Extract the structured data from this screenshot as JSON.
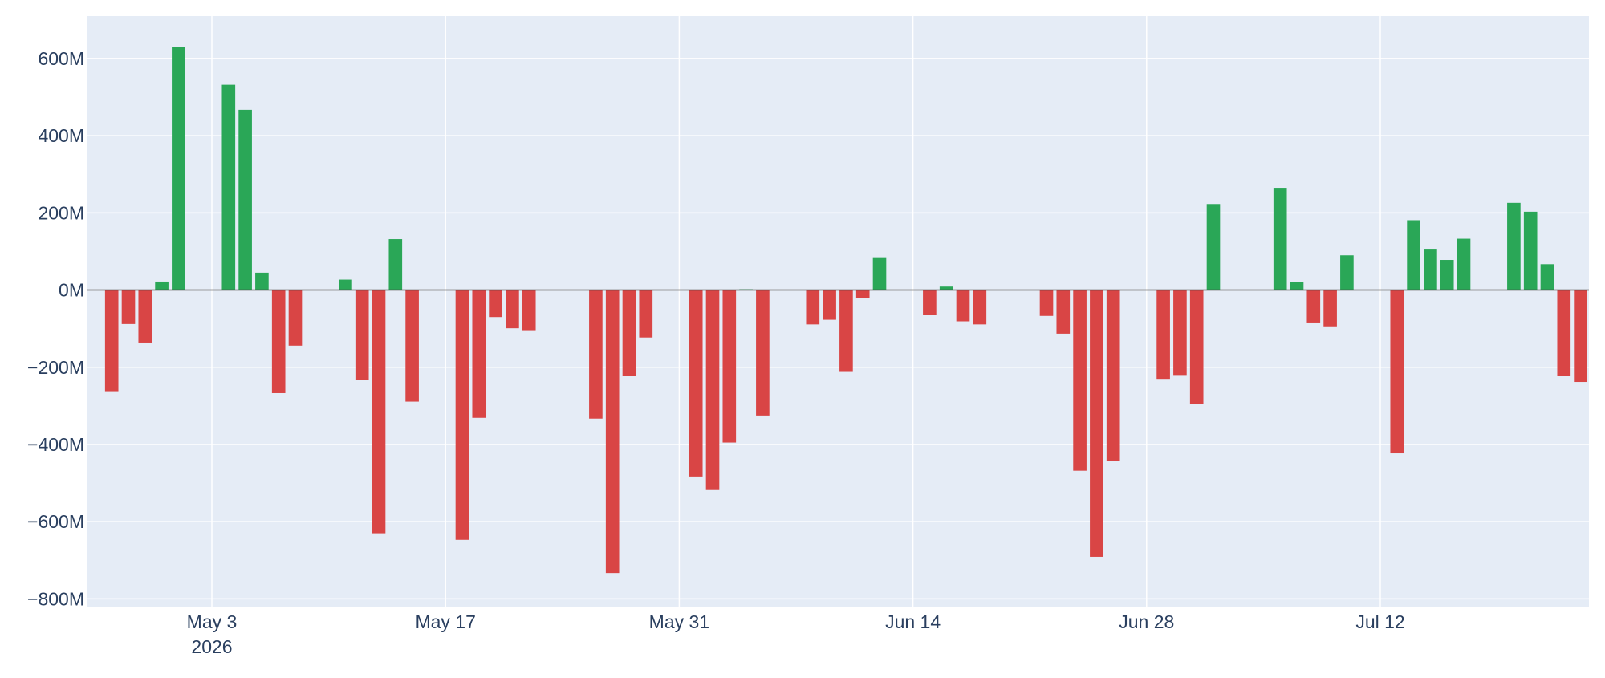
{
  "chart_data": {
    "type": "bar",
    "title": "",
    "xlabel": "",
    "ylabel": "",
    "ylim": [
      -820000000,
      710000000
    ],
    "xlim": [
      "2026-04-26",
      "2026-07-24"
    ],
    "grid": true,
    "legend": "none",
    "colors": {
      "positive": "#2aa757",
      "negative": "#d94545",
      "plot_bg": "#e5ecf6",
      "grid": "#ffffff",
      "zero_line": "#444444"
    },
    "y_ticks": [
      {
        "value": 600000000,
        "label": "600M"
      },
      {
        "value": 400000000,
        "label": "400M"
      },
      {
        "value": 200000000,
        "label": "200M"
      },
      {
        "value": 0,
        "label": "0M"
      },
      {
        "value": -200000000,
        "label": "−200M"
      },
      {
        "value": -400000000,
        "label": "−400M"
      },
      {
        "value": -600000000,
        "label": "−600M"
      },
      {
        "value": -800000000,
        "label": "−800M"
      }
    ],
    "x_ticks": [
      {
        "date": "2026-05-03",
        "label": "May 3",
        "sublabel": "2026"
      },
      {
        "date": "2026-05-17",
        "label": "May 17"
      },
      {
        "date": "2026-05-31",
        "label": "May 31"
      },
      {
        "date": "2026-06-14",
        "label": "Jun 14"
      },
      {
        "date": "2026-06-28",
        "label": "Jun 28"
      },
      {
        "date": "2026-07-12",
        "label": "Jul 12"
      }
    ],
    "x": [
      "2026-04-27",
      "2026-04-28",
      "2026-04-29",
      "2026-04-30",
      "2026-05-01",
      "2026-05-04",
      "2026-05-05",
      "2026-05-06",
      "2026-05-07",
      "2026-05-08",
      "2026-05-11",
      "2026-05-12",
      "2026-05-13",
      "2026-05-14",
      "2026-05-15",
      "2026-05-18",
      "2026-05-19",
      "2026-05-20",
      "2026-05-21",
      "2026-05-22",
      "2026-05-26",
      "2026-05-27",
      "2026-05-28",
      "2026-05-29",
      "2026-06-01",
      "2026-06-02",
      "2026-06-03",
      "2026-06-04",
      "2026-06-05",
      "2026-06-08",
      "2026-06-09",
      "2026-06-10",
      "2026-06-11",
      "2026-06-12",
      "2026-06-15",
      "2026-06-16",
      "2026-06-17",
      "2026-06-18",
      "2026-06-22",
      "2026-06-23",
      "2026-06-24",
      "2026-06-25",
      "2026-06-26",
      "2026-06-29",
      "2026-06-30",
      "2026-07-01",
      "2026-07-02",
      "2026-07-06",
      "2026-07-07",
      "2026-07-08",
      "2026-07-09",
      "2026-07-10",
      "2026-07-13",
      "2026-07-14",
      "2026-07-15",
      "2026-07-16",
      "2026-07-17",
      "2026-07-20",
      "2026-07-21",
      "2026-07-22",
      "2026-07-23",
      "2026-07-24"
    ],
    "values": [
      -262000000,
      -88000000,
      -136000000,
      22000000,
      630000000,
      532000000,
      467000000,
      45000000,
      -267000000,
      -144000000,
      27000000,
      -232000000,
      -630000000,
      132000000,
      -289000000,
      -647000000,
      -331000000,
      -70000000,
      -99000000,
      -104000000,
      -333000000,
      -733000000,
      -222000000,
      -123000000,
      -483000000,
      -518000000,
      -395000000,
      2000000,
      -325000000,
      -89000000,
      -77000000,
      -212000000,
      -20000000,
      85000000,
      -64000000,
      9000000,
      -81000000,
      -89000000,
      -67000000,
      -113000000,
      -468000000,
      -691000000,
      -443000000,
      -230000000,
      -220000000,
      -295000000,
      223000000,
      265000000,
      21000000,
      -84000000,
      -94000000,
      90000000,
      -423000000,
      181000000,
      107000000,
      78000000,
      133000000,
      226000000,
      203000000,
      67000000,
      -223000000,
      -238000000
    ]
  }
}
